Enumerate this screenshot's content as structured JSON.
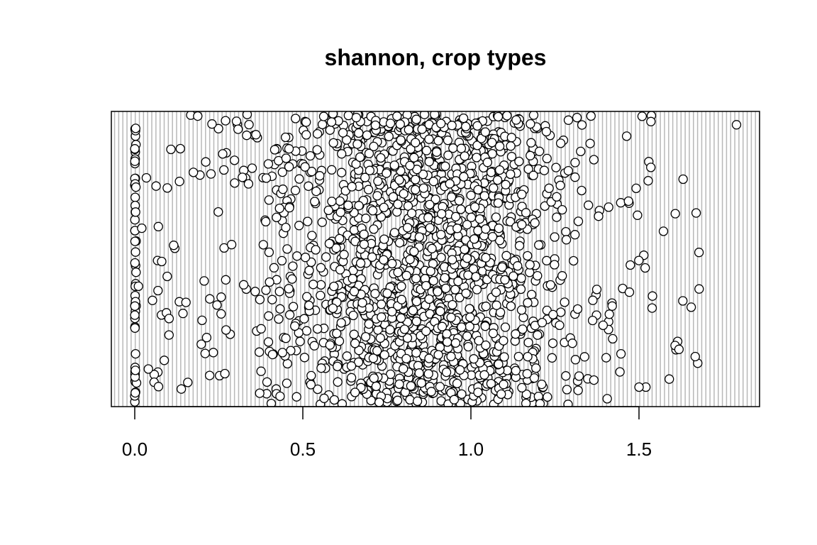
{
  "chart_data": {
    "type": "scatter",
    "title": "shannon, crop types",
    "xlabel": "",
    "ylabel": "",
    "xlim": [
      -0.056,
      1.86
    ],
    "x_ticks": [
      {
        "value": 0.0,
        "label": "0.0"
      },
      {
        "value": 0.5,
        "label": "0.5"
      },
      {
        "value": 1.0,
        "label": "1.0"
      },
      {
        "value": 1.5,
        "label": "1.5"
      }
    ],
    "y_axis": "none (random vertical jitter)",
    "grid": "dense vertical gridlines",
    "point_style": "open circle, black outline, white fill",
    "distribution": {
      "n_points_approx": 1800,
      "zero_value_points": 55,
      "bulk_range": [
        0.15,
        1.55
      ],
      "peak_region": [
        0.6,
        1.1
      ],
      "max_value": 1.79
    }
  }
}
